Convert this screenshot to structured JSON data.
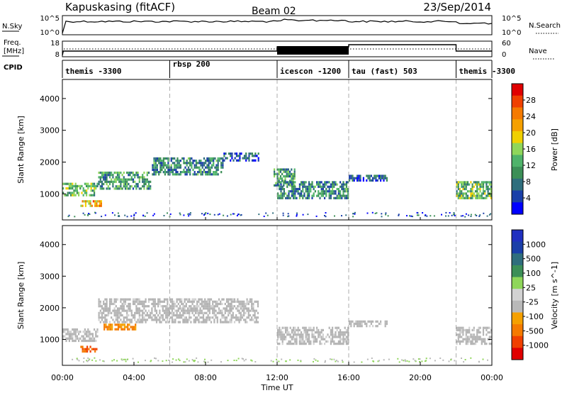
{
  "header": {
    "station": "Kapuskasing (fitACF)",
    "beam": "Beam 02",
    "date": "23/Sep/2014"
  },
  "panel_labels": {
    "nsky": "N.Sky",
    "nsky_ticks": [
      "10^5",
      "10^0"
    ],
    "nsearch": "N.Search",
    "nsearch_ticks": [
      "10^5",
      "10^0"
    ],
    "freq": "Freq.",
    "freq_unit": "[MHz]",
    "freq_ticks": [
      "18",
      "8"
    ],
    "nave": "Nave",
    "nave_ticks": [
      "60",
      "0"
    ],
    "cpid": "CPID"
  },
  "cpid_segments": [
    {
      "label": "themis -3300",
      "start": 0,
      "end": 6
    },
    {
      "label": "rbsp 200",
      "start": 6,
      "end": 12
    },
    {
      "label": "icescon -1200",
      "start": 12,
      "end": 16
    },
    {
      "label": "tau (fast) 503",
      "start": 16,
      "end": 22
    },
    {
      "label": "themis -3300",
      "start": 22,
      "end": 24
    }
  ],
  "colors": {
    "power_scale": [
      "#0000ff",
      "#1a3fa8",
      "#2f6e7d",
      "#3c8f57",
      "#4fb36a",
      "#8fd65a",
      "#f0d000",
      "#f5a000",
      "#f57a00",
      "#f04000",
      "#e00000"
    ],
    "velocity_scale": [
      "#e00000",
      "#f04000",
      "#f57a00",
      "#f5a000",
      "#b9b9b9",
      "#d2d2d2",
      "#8fd65a",
      "#3c8f57",
      "#2f6e7d",
      "#1a3fa8",
      "#2030c0"
    ],
    "ground_scatter": "#b4b4b4"
  },
  "chart_data": [
    {
      "type": "heatmap",
      "title": "Power",
      "xlabel": "Time UT",
      "ylabel": "Slant Range [km]",
      "xlim": [
        0,
        24
      ],
      "ylim": [
        180,
        4600
      ],
      "x_ticks": [
        "00:00",
        "04:00",
        "08:00",
        "12:00",
        "16:00",
        "20:00",
        "00:00"
      ],
      "y_ticks": [
        "1000",
        "2000",
        "3000",
        "4000"
      ],
      "y_tick_values": [
        1000,
        2000,
        3000,
        4000
      ],
      "colorbar_label": "Power [dB]",
      "colorbar_ticks": [
        "28",
        "24",
        "20",
        "16",
        "12",
        "8",
        "4"
      ],
      "colorbar_range": [
        0,
        30
      ],
      "echo_bands": [
        {
          "start": 0.0,
          "end": 2.0,
          "range_low": 900,
          "range_high": 1350,
          "power": 12
        },
        {
          "start": 1.0,
          "end": 2.2,
          "range_low": 600,
          "range_high": 800,
          "power": 20
        },
        {
          "start": 2.0,
          "end": 5.0,
          "range_low": 1100,
          "range_high": 1700,
          "power": 10
        },
        {
          "start": 5.0,
          "end": 9.0,
          "range_low": 1600,
          "range_high": 2150,
          "power": 8
        },
        {
          "start": 9.0,
          "end": 11.0,
          "range_low": 2000,
          "range_high": 2300,
          "power": 4
        },
        {
          "start": 11.8,
          "end": 13.0,
          "range_low": 1200,
          "range_high": 1800,
          "power": 10
        },
        {
          "start": 12.0,
          "end": 16.0,
          "range_low": 850,
          "range_high": 1400,
          "power": 8
        },
        {
          "start": 16.0,
          "end": 18.2,
          "range_low": 1350,
          "range_high": 1600,
          "power": 4
        },
        {
          "start": 22.0,
          "end": 24.0,
          "range_low": 800,
          "range_high": 1400,
          "power": 12
        }
      ]
    },
    {
      "type": "heatmap",
      "title": "Velocity",
      "xlabel": "Time UT",
      "ylabel": "Slant Range [km]",
      "xlim": [
        0,
        24
      ],
      "ylim": [
        180,
        4600
      ],
      "x_ticks": [
        "00:00",
        "04:00",
        "08:00",
        "12:00",
        "16:00",
        "20:00",
        "00:00"
      ],
      "y_ticks": [
        "1000",
        "2000",
        "3000",
        "4000"
      ],
      "y_tick_values": [
        1000,
        2000,
        3000,
        4000
      ],
      "colorbar_label": "Velocity [m s^-1]",
      "colorbar_ticks": [
        "1000",
        "500",
        "100",
        "25",
        "-25",
        "-100",
        "-500",
        "-1000"
      ],
      "echo_bands": [
        {
          "start": 0.0,
          "end": 2.0,
          "range_low": 900,
          "range_high": 1350,
          "velocity": 0
        },
        {
          "start": 1.0,
          "end": 2.0,
          "range_low": 600,
          "range_high": 800,
          "velocity": -300
        },
        {
          "start": 2.3,
          "end": 4.2,
          "range_low": 1250,
          "range_high": 1500,
          "velocity": -200
        },
        {
          "start": 2.0,
          "end": 11.0,
          "range_low": 1500,
          "range_high": 2300,
          "velocity": 0
        },
        {
          "start": 12.0,
          "end": 16.0,
          "range_low": 850,
          "range_high": 1400,
          "velocity": 0
        },
        {
          "start": 16.0,
          "end": 18.2,
          "range_low": 1350,
          "range_high": 1600,
          "velocity": 0
        },
        {
          "start": 22.0,
          "end": 24.0,
          "range_low": 800,
          "range_high": 1400,
          "velocity": 0
        }
      ]
    }
  ]
}
